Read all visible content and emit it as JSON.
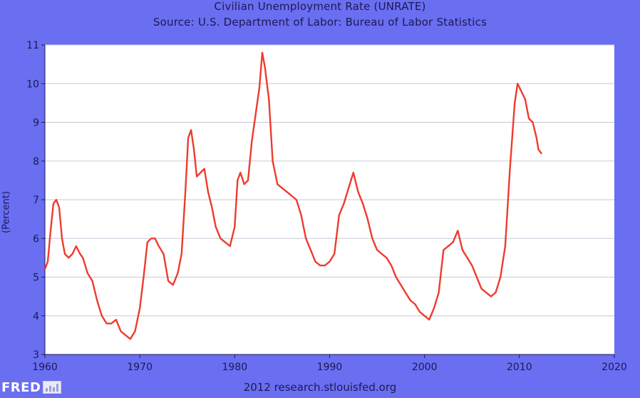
{
  "chart_data": {
    "type": "line",
    "title": "Civilian Unemployment Rate (UNRATE)",
    "subtitle": "Source: U.S. Department of Labor: Bureau of Labor Statistics",
    "xlabel": "",
    "ylabel": "(Percent)",
    "xlim": [
      1960,
      2020
    ],
    "ylim": [
      3,
      11
    ],
    "xticks": [
      "1960",
      "1970",
      "1980",
      "1990",
      "2000",
      "2010",
      "2020"
    ],
    "yticks": [
      "3",
      "4",
      "5",
      "6",
      "7",
      "8",
      "9",
      "10",
      "11"
    ],
    "grid": true,
    "series": [
      {
        "color": "#ee3b2e",
        "x": [
          1960.0,
          1960.3,
          1960.6,
          1960.9,
          1961.2,
          1961.5,
          1961.8,
          1962.1,
          1962.5,
          1962.9,
          1963.3,
          1963.7,
          1964.0,
          1964.5,
          1965.0,
          1965.5,
          1966.0,
          1966.5,
          1967.0,
          1967.5,
          1968.0,
          1968.5,
          1969.0,
          1969.5,
          1970.0,
          1970.4,
          1970.8,
          1971.2,
          1971.6,
          1972.0,
          1972.5,
          1973.0,
          1973.5,
          1974.0,
          1974.4,
          1974.8,
          1975.1,
          1975.4,
          1975.7,
          1976.0,
          1976.4,
          1976.8,
          1977.2,
          1977.6,
          1978.0,
          1978.5,
          1979.0,
          1979.5,
          1980.0,
          1980.3,
          1980.6,
          1981.0,
          1981.4,
          1981.8,
          1982.2,
          1982.6,
          1982.9,
          1983.2,
          1983.6,
          1984.0,
          1984.5,
          1985.0,
          1985.5,
          1986.0,
          1986.5,
          1987.0,
          1987.5,
          1988.0,
          1988.5,
          1989.0,
          1989.5,
          1990.0,
          1990.5,
          1991.0,
          1991.5,
          1992.0,
          1992.5,
          1993.0,
          1993.5,
          1994.0,
          1994.5,
          1995.0,
          1995.5,
          1996.0,
          1996.5,
          1997.0,
          1997.5,
          1998.0,
          1998.5,
          1999.0,
          1999.5,
          2000.0,
          2000.5,
          2001.0,
          2001.5,
          2002.0,
          2002.5,
          2003.0,
          2003.5,
          2004.0,
          2004.5,
          2005.0,
          2005.5,
          2006.0,
          2006.5,
          2007.0,
          2007.5,
          2008.0,
          2008.5,
          2009.0,
          2009.5,
          2009.8,
          2010.2,
          2010.6,
          2011.0,
          2011.4,
          2011.8,
          2012.0,
          2012.3
        ],
        "y": [
          5.2,
          5.4,
          6.2,
          6.9,
          7.0,
          6.8,
          6.0,
          5.6,
          5.5,
          5.6,
          5.8,
          5.6,
          5.5,
          5.1,
          4.9,
          4.4,
          4.0,
          3.8,
          3.8,
          3.9,
          3.6,
          3.5,
          3.4,
          3.6,
          4.2,
          5.0,
          5.9,
          6.0,
          6.0,
          5.8,
          5.6,
          4.9,
          4.8,
          5.1,
          5.6,
          7.2,
          8.6,
          8.8,
          8.3,
          7.6,
          7.7,
          7.8,
          7.2,
          6.8,
          6.3,
          6.0,
          5.9,
          5.8,
          6.3,
          7.5,
          7.7,
          7.4,
          7.5,
          8.5,
          9.2,
          9.9,
          10.8,
          10.4,
          9.6,
          8.0,
          7.4,
          7.3,
          7.2,
          7.1,
          7.0,
          6.6,
          6.0,
          5.7,
          5.4,
          5.3,
          5.3,
          5.4,
          5.6,
          6.6,
          6.9,
          7.3,
          7.7,
          7.2,
          6.9,
          6.5,
          6.0,
          5.7,
          5.6,
          5.5,
          5.3,
          5.0,
          4.8,
          4.6,
          4.4,
          4.3,
          4.1,
          4.0,
          3.9,
          4.2,
          4.6,
          5.7,
          5.8,
          5.9,
          6.2,
          5.7,
          5.5,
          5.3,
          5.0,
          4.7,
          4.6,
          4.5,
          4.6,
          5.0,
          5.8,
          7.8,
          9.5,
          10.0,
          9.8,
          9.6,
          9.1,
          9.0,
          8.6,
          8.3,
          8.2
        ]
      }
    ]
  },
  "footer": {
    "text": "2012 research.stlouisfed.org",
    "logo_text": "FRED"
  }
}
